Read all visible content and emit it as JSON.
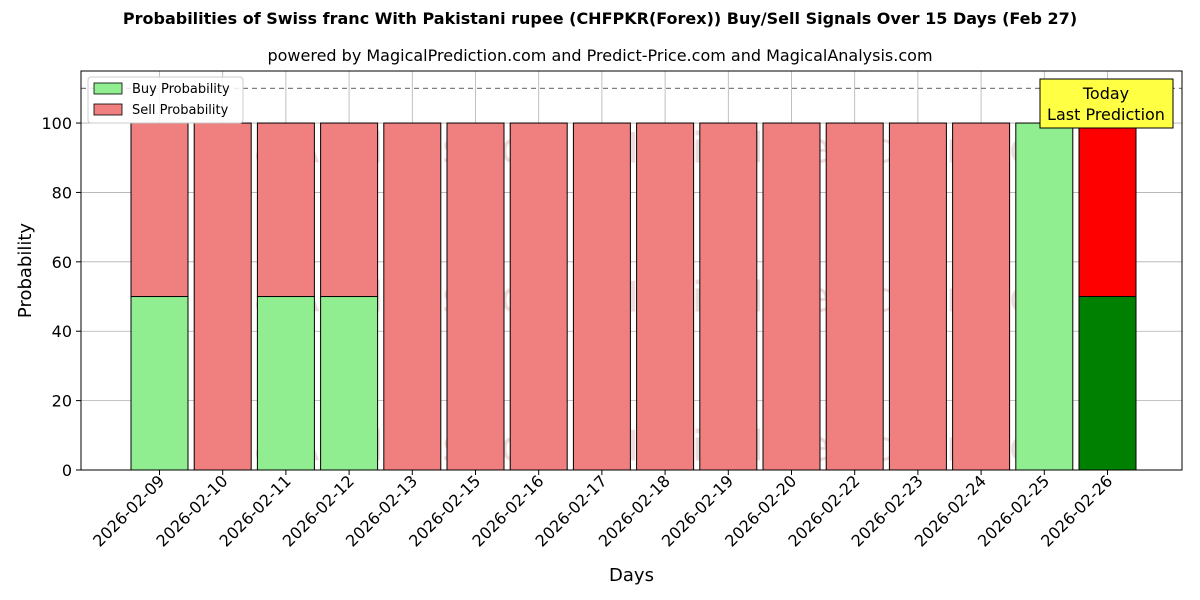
{
  "chart_data": {
    "type": "bar",
    "stacked": true,
    "title": "Probabilities of Swiss franc With Pakistani rupee (CHFPKR(Forex)) Buy/Sell Signals Over 15 Days (Feb 27)",
    "subtitle": "powered by MagicalPrediction.com and Predict-Price.com and MagicalAnalysis.com",
    "xlabel": "Days",
    "ylabel": "Probability",
    "ylim": [
      0,
      115
    ],
    "yticks": [
      0,
      20,
      40,
      60,
      80,
      100
    ],
    "reference_line": 110,
    "grid": true,
    "legend_position": "top-left",
    "categories": [
      "2026-02-09",
      "2026-02-10",
      "2026-02-11",
      "2026-02-12",
      "2026-02-13",
      "2026-02-15",
      "2026-02-16",
      "2026-02-17",
      "2026-02-18",
      "2026-02-19",
      "2026-02-20",
      "2026-02-22",
      "2026-02-23",
      "2026-02-24",
      "2026-02-25",
      "2026-02-26"
    ],
    "series": [
      {
        "name": "Buy Probability",
        "color": "#90ee90",
        "highlight_color": "#008000",
        "values": [
          50,
          0,
          50,
          50,
          0,
          0,
          0,
          0,
          0,
          0,
          0,
          0,
          0,
          0,
          100,
          50
        ]
      },
      {
        "name": "Sell Probability",
        "color": "#f08080",
        "highlight_color": "#ff0000",
        "values": [
          50,
          100,
          50,
          50,
          100,
          100,
          100,
          100,
          100,
          100,
          100,
          100,
          100,
          100,
          0,
          50
        ]
      }
    ],
    "highlight_index": 15,
    "annotation": {
      "line1": "Today",
      "line2": "Last Prediction",
      "bg": "#ffff44"
    },
    "watermarks": [
      "MagicalAnalysis.com",
      "MagicalPrediction.com"
    ]
  }
}
